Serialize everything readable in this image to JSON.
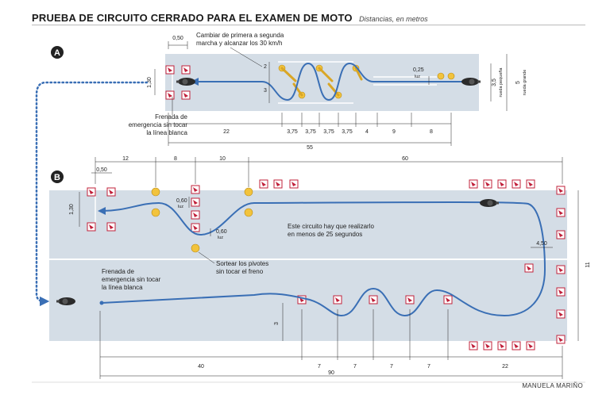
{
  "header": {
    "title": "PRUEBA DE CIRCUITO CERRADO PARA EL EXAMEN DE MOTO",
    "subtitle": "Distancias, en metros"
  },
  "credit": "MANUELA MARIÑO",
  "section_a": {
    "badge": "A",
    "note_top_1": "Cambiar de primera a segunda",
    "note_top_2": "marcha y alcanzar los 30 km/h",
    "note_brake_1": "Frenada de",
    "note_brake_2": "emergencia sin tocar",
    "note_brake_3": "la línea blanca",
    "dim_050": "0,50",
    "dim_130": "1,30",
    "dim_2": "2",
    "dim_3": "3",
    "dim_025": "0,25",
    "luz": "luz",
    "dim_35": "3,5",
    "dim_5": "5",
    "rueda_pequena": "rueda pequeña",
    "rueda_grande": "rueda grande",
    "dim_22": "22",
    "dim_375a": "3,75",
    "dim_375b": "3,75",
    "dim_375c": "3,75",
    "dim_375d": "3,75",
    "dim_4": "4",
    "dim_9": "9",
    "dim_8": "8",
    "dim_55": "55"
  },
  "section_b": {
    "badge": "B",
    "dim_12": "12",
    "dim_8": "8",
    "dim_10": "10",
    "dim_60": "60",
    "dim_050": "0,50",
    "dim_130": "1,30",
    "dim_060a": "0,60",
    "dim_060b": "0,60",
    "luz": "luz",
    "note_time_1": "Este circuito hay que realizarlo",
    "note_time_2": "en menos de 25 segundos",
    "note_pivots_1": "Sortear los pivotes",
    "note_pivots_2": "sin tocar el freno",
    "note_brake_1": "Frenada de",
    "note_brake_2": "emergencia sin tocar",
    "note_brake_3": "la línea blanca",
    "dim_450": "4,50",
    "dim_11": "11",
    "dim_3": "3",
    "dim_40": "40",
    "dim_7a": "7",
    "dim_7b": "7",
    "dim_7c": "7",
    "dim_7d": "7",
    "dim_22": "22",
    "dim_90": "90"
  },
  "colors": {
    "track": "#d4dde6",
    "path": "#3a6fb5",
    "cone": "#c0203a",
    "pivot": "#f2c33c",
    "text": "#222222"
  }
}
